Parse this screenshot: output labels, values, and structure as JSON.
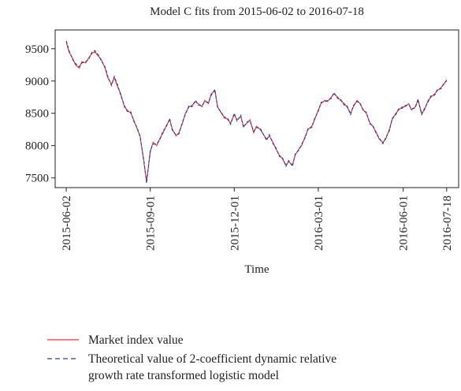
{
  "chart_data": {
    "type": "line",
    "title": "Model C fits from 2015-06-02 to 2016-07-18",
    "x_label": "Time",
    "x": [
      "2015-06-02",
      "2015-06-05",
      "2015-06-09",
      "2015-06-12",
      "2015-06-16",
      "2015-06-19",
      "2015-06-23",
      "2015-06-26",
      "2015-06-30",
      "2015-07-03",
      "2015-07-07",
      "2015-07-10",
      "2015-07-14",
      "2015-07-17",
      "2015-07-21",
      "2015-07-24",
      "2015-07-28",
      "2015-07-31",
      "2015-08-04",
      "2015-08-07",
      "2015-08-11",
      "2015-08-14",
      "2015-08-18",
      "2015-08-21",
      "2015-08-25",
      "2015-08-28",
      "2015-09-01",
      "2015-09-04",
      "2015-09-08",
      "2015-09-11",
      "2015-09-15",
      "2015-09-18",
      "2015-09-22",
      "2015-09-25",
      "2015-09-29",
      "2015-10-02",
      "2015-10-06",
      "2015-10-09",
      "2015-10-13",
      "2015-10-16",
      "2015-10-20",
      "2015-10-23",
      "2015-10-27",
      "2015-10-30",
      "2015-11-03",
      "2015-11-06",
      "2015-11-10",
      "2015-11-13",
      "2015-11-17",
      "2015-11-20",
      "2015-11-24",
      "2015-11-27",
      "2015-12-01",
      "2015-12-04",
      "2015-12-08",
      "2015-12-11",
      "2015-12-15",
      "2015-12-18",
      "2015-12-22",
      "2015-12-25",
      "2015-12-29",
      "2016-01-05",
      "2016-01-08",
      "2016-01-12",
      "2016-01-15",
      "2016-01-19",
      "2016-01-22",
      "2016-01-26",
      "2016-01-29",
      "2016-02-02",
      "2016-02-05",
      "2016-02-09",
      "2016-02-12",
      "2016-02-16",
      "2016-02-19",
      "2016-02-23",
      "2016-02-26",
      "2016-03-01",
      "2016-03-04",
      "2016-03-08",
      "2016-03-11",
      "2016-03-15",
      "2016-03-18",
      "2016-03-22",
      "2016-03-25",
      "2016-03-29",
      "2016-04-01",
      "2016-04-05",
      "2016-04-08",
      "2016-04-12",
      "2016-04-15",
      "2016-04-19",
      "2016-04-22",
      "2016-04-26",
      "2016-04-29",
      "2016-05-03",
      "2016-05-06",
      "2016-05-10",
      "2016-05-13",
      "2016-05-17",
      "2016-05-20",
      "2016-05-24",
      "2016-05-27",
      "2016-05-31",
      "2016-06-03",
      "2016-06-07",
      "2016-06-10",
      "2016-06-14",
      "2016-06-17",
      "2016-06-21",
      "2016-06-24",
      "2016-06-28",
      "2016-07-01",
      "2016-07-05",
      "2016-07-08",
      "2016-07-12",
      "2016-07-15",
      "2016-07-18"
    ],
    "series": [
      {
        "name": "Market index value",
        "color": "#e8333a",
        "dash": false,
        "values": [
          9600,
          9450,
          9350,
          9250,
          9200,
          9300,
          9280,
          9350,
          9430,
          9450,
          9380,
          9330,
          9200,
          9050,
          8950,
          9050,
          8900,
          8800,
          8600,
          8550,
          8500,
          8400,
          8250,
          8150,
          7750,
          7450,
          7900,
          8050,
          8000,
          8100,
          8200,
          8300,
          8400,
          8250,
          8150,
          8200,
          8350,
          8500,
          8600,
          8620,
          8680,
          8650,
          8600,
          8700,
          8650,
          8800,
          8850,
          8600,
          8500,
          8450,
          8400,
          8350,
          8480,
          8400,
          8450,
          8300,
          8350,
          8400,
          8200,
          8300,
          8250,
          8100,
          8150,
          8050,
          7950,
          7850,
          7800,
          7700,
          7750,
          7700,
          7850,
          7950,
          8000,
          8150,
          8250,
          8300,
          8400,
          8550,
          8650,
          8700,
          8680,
          8750,
          8800,
          8750,
          8700,
          8650,
          8600,
          8500,
          8600,
          8700,
          8650,
          8550,
          8500,
          8350,
          8300,
          8200,
          8100,
          8050,
          8100,
          8250,
          8400,
          8500,
          8550,
          8600,
          8600,
          8650,
          8550,
          8600,
          8700,
          8500,
          8550,
          8700,
          8750,
          8800,
          8850,
          8900,
          8950,
          9020
        ]
      },
      {
        "name": "Theoretical value of 2-coefficient dynamic relative growth rate transformed logistic model",
        "color": "#2b3d8f",
        "dash": true,
        "values": [
          9620,
          9470,
          9330,
          9270,
          9220,
          9280,
          9300,
          9330,
          9450,
          9470,
          9400,
          9310,
          9220,
          9070,
          8930,
          9070,
          8920,
          8780,
          8620,
          8530,
          8520,
          8380,
          8270,
          8130,
          7780,
          7420,
          7930,
          8020,
          8030,
          8080,
          8230,
          8280,
          8420,
          8230,
          8170,
          8180,
          8370,
          8480,
          8620,
          8600,
          8700,
          8630,
          8620,
          8680,
          8670,
          8780,
          8870,
          8580,
          8520,
          8430,
          8420,
          8330,
          8500,
          8380,
          8470,
          8280,
          8370,
          8380,
          8220,
          8280,
          8270,
          8080,
          8170,
          8030,
          7970,
          7830,
          7820,
          7680,
          7770,
          7680,
          7870,
          7930,
          8020,
          8130,
          8270,
          8280,
          8420,
          8530,
          8670,
          8680,
          8700,
          8730,
          8820,
          8730,
          8720,
          8630,
          8620,
          8480,
          8620,
          8680,
          8670,
          8530,
          8520,
          8330,
          8320,
          8180,
          8120,
          8030,
          8120,
          8230,
          8420,
          8480,
          8570,
          8580,
          8620,
          8630,
          8570,
          8580,
          8720,
          8480,
          8570,
          8680,
          8770,
          8780,
          8870,
          8880,
          8970,
          9000
        ]
      }
    ],
    "xlim": [
      "2015-05-21",
      "2016-07-31"
    ],
    "xticks": [
      "2015-06-02",
      "2015-09-01",
      "2015-12-01",
      "2016-03-01",
      "2016-06-01",
      "2016-07-18"
    ],
    "ylim": [
      7350,
      9790
    ],
    "yticks": [
      7500,
      8000,
      8500,
      9000,
      9500
    ],
    "legend": "bottom"
  }
}
